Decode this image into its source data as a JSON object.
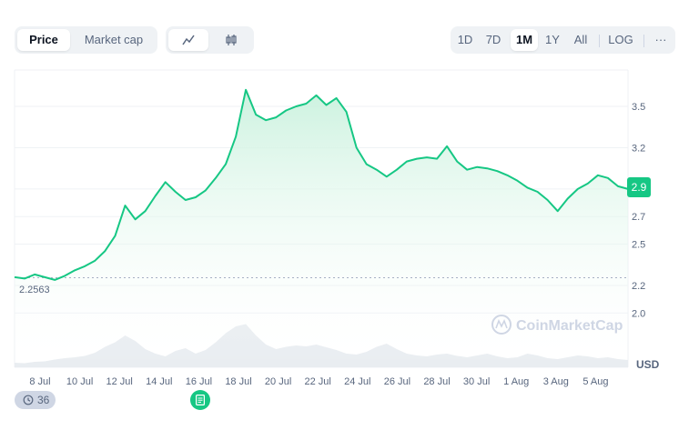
{
  "toolbar": {
    "type_tabs": [
      {
        "label": "Price",
        "active": true
      },
      {
        "label": "Market cap",
        "active": false
      }
    ],
    "style_tabs": [
      {
        "icon": "line-chart-icon",
        "active": true
      },
      {
        "icon": "candlestick-icon",
        "active": false
      }
    ],
    "range_tabs": [
      {
        "label": "1D",
        "active": false
      },
      {
        "label": "7D",
        "active": false
      },
      {
        "label": "1M",
        "active": true
      },
      {
        "label": "1Y",
        "active": false
      },
      {
        "label": "All",
        "active": false
      },
      {
        "label": "LOG",
        "active": false
      }
    ],
    "more_label": "···"
  },
  "watermark": "CoinMarketCap",
  "history_badge": {
    "icon": "history-icon",
    "count": "36"
  },
  "note_badge": {
    "icon": "document-icon"
  },
  "colors": {
    "line": "#16c784",
    "area_top": "#c9f1dd",
    "volume": "#e9edf1",
    "grid": "#eff2f5",
    "reference": "#a6b0c3"
  },
  "chart_data": {
    "type": "area",
    "x_labels": [
      "8 Jul",
      "10 Jul",
      "12 Jul",
      "14 Jul",
      "16 Jul",
      "18 Jul",
      "20 Jul",
      "22 Jul",
      "24 Jul",
      "26 Jul",
      "28 Jul",
      "30 Jul",
      "1 Aug",
      "3 Aug",
      "5 Aug"
    ],
    "y_ticks": [
      "3.5",
      "3.2",
      "2.9",
      "2.7",
      "2.5",
      "2.2",
      "2.0"
    ],
    "ylim": [
      1.9,
      3.7
    ],
    "y_unit": "USD",
    "reference_value": 2.2563,
    "reference_label": "2.2563",
    "current_value": 2.9,
    "current_label": "2.9",
    "x": [
      "7 Jul",
      "7.5 Jul",
      "8 Jul",
      "8.5 Jul",
      "9 Jul",
      "9.5 Jul",
      "10 Jul",
      "10.5 Jul",
      "11 Jul",
      "11.5 Jul",
      "12 Jul",
      "12.5 Jul",
      "13 Jul",
      "13.5 Jul",
      "14 Jul",
      "14.5 Jul",
      "15 Jul",
      "15.5 Jul",
      "16 Jul",
      "16.5 Jul",
      "17 Jul",
      "17.5 Jul",
      "18 Jul",
      "18.5 Jul",
      "19 Jul",
      "19.5 Jul",
      "20 Jul",
      "20.5 Jul",
      "21 Jul",
      "21.5 Jul",
      "22 Jul",
      "22.5 Jul",
      "23 Jul",
      "23.5 Jul",
      "24 Jul",
      "24.5 Jul",
      "25 Jul",
      "25.5 Jul",
      "26 Jul",
      "26.5 Jul",
      "27 Jul",
      "27.5 Jul",
      "28 Jul",
      "28.5 Jul",
      "29 Jul",
      "29.5 Jul",
      "30 Jul",
      "30.5 Jul",
      "31 Jul",
      "31.5 Jul",
      "1 Aug",
      "1.5 Aug",
      "2 Aug",
      "2.5 Aug",
      "3 Aug",
      "3.5 Aug",
      "4 Aug",
      "4.5 Aug",
      "5 Aug",
      "5.5 Aug",
      "6 Aug",
      "6.5 Aug"
    ],
    "price": [
      2.26,
      2.25,
      2.28,
      2.26,
      2.24,
      2.27,
      2.31,
      2.34,
      2.38,
      2.45,
      2.56,
      2.78,
      2.68,
      2.74,
      2.85,
      2.95,
      2.88,
      2.82,
      2.84,
      2.89,
      2.98,
      3.08,
      3.28,
      3.62,
      3.44,
      3.4,
      3.42,
      3.47,
      3.5,
      3.52,
      3.58,
      3.51,
      3.56,
      3.46,
      3.2,
      3.08,
      3.04,
      2.99,
      3.04,
      3.1,
      3.12,
      3.13,
      3.12,
      3.21,
      3.1,
      3.04,
      3.06,
      3.05,
      3.03,
      3.0,
      2.96,
      2.91,
      2.88,
      2.82,
      2.74,
      2.83,
      2.9,
      2.94,
      3.0,
      2.98,
      2.92,
      2.9
    ],
    "volume": [
      0.1,
      0.09,
      0.12,
      0.13,
      0.17,
      0.2,
      0.22,
      0.25,
      0.32,
      0.45,
      0.55,
      0.7,
      0.58,
      0.4,
      0.3,
      0.24,
      0.36,
      0.42,
      0.3,
      0.38,
      0.55,
      0.75,
      0.9,
      0.95,
      0.7,
      0.5,
      0.4,
      0.45,
      0.48,
      0.46,
      0.5,
      0.44,
      0.38,
      0.3,
      0.28,
      0.34,
      0.45,
      0.52,
      0.4,
      0.3,
      0.26,
      0.24,
      0.28,
      0.3,
      0.25,
      0.22,
      0.26,
      0.3,
      0.24,
      0.2,
      0.22,
      0.3,
      0.26,
      0.2,
      0.18,
      0.22,
      0.26,
      0.24,
      0.2,
      0.22,
      0.18,
      0.16
    ]
  }
}
